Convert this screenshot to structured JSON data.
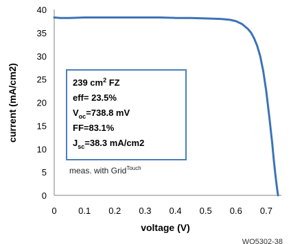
{
  "chart_data": {
    "type": "line",
    "xlabel": "voltage (V)",
    "ylabel": "current (mA/cm2)",
    "xlim": [
      0,
      0.75
    ],
    "ylim": [
      0,
      40
    ],
    "x_ticks": [
      "0",
      "0.1",
      "0.2",
      "0.3",
      "0.4",
      "0.5",
      "0.6",
      "0.7"
    ],
    "y_ticks": [
      "0",
      "5",
      "10",
      "15",
      "20",
      "25",
      "30",
      "35",
      "40"
    ],
    "grid": false,
    "line_color": "#3d72b8",
    "series": [
      {
        "x": [
          0,
          0.02,
          0.05,
          0.1,
          0.15,
          0.2,
          0.25,
          0.3,
          0.35,
          0.4,
          0.45,
          0.5,
          0.55,
          0.58,
          0.6,
          0.62,
          0.64,
          0.65,
          0.66,
          0.67,
          0.68,
          0.69,
          0.7,
          0.71,
          0.72,
          0.725,
          0.73,
          0.735,
          0.7388
        ],
        "y": [
          38.3,
          38.2,
          38.2,
          38.3,
          38.3,
          38.3,
          38.3,
          38.3,
          38.3,
          38.2,
          38.2,
          38.1,
          38.0,
          37.8,
          37.5,
          36.9,
          35.8,
          35.0,
          33.8,
          32.2,
          30.0,
          26.8,
          22.5,
          17.0,
          11.0,
          7.5,
          4.5,
          1.8,
          0
        ]
      }
    ],
    "annotation_box": {
      "line1_main": "239 cm",
      "line1_sup": "2",
      "line1_tail": " FZ",
      "line2": "eff= 23.5%",
      "line3_main": "V",
      "line3_sub": "oc",
      "line3_tail": "=738.8 mV",
      "line4": "FF=83.1%",
      "line5_main": "J",
      "line5_sub": "sc",
      "line5_tail": "=38.3 mA/cm2"
    },
    "note_main": "meas. with Grid",
    "note_sup": "Touch",
    "corner_label": "WO5302-38"
  }
}
